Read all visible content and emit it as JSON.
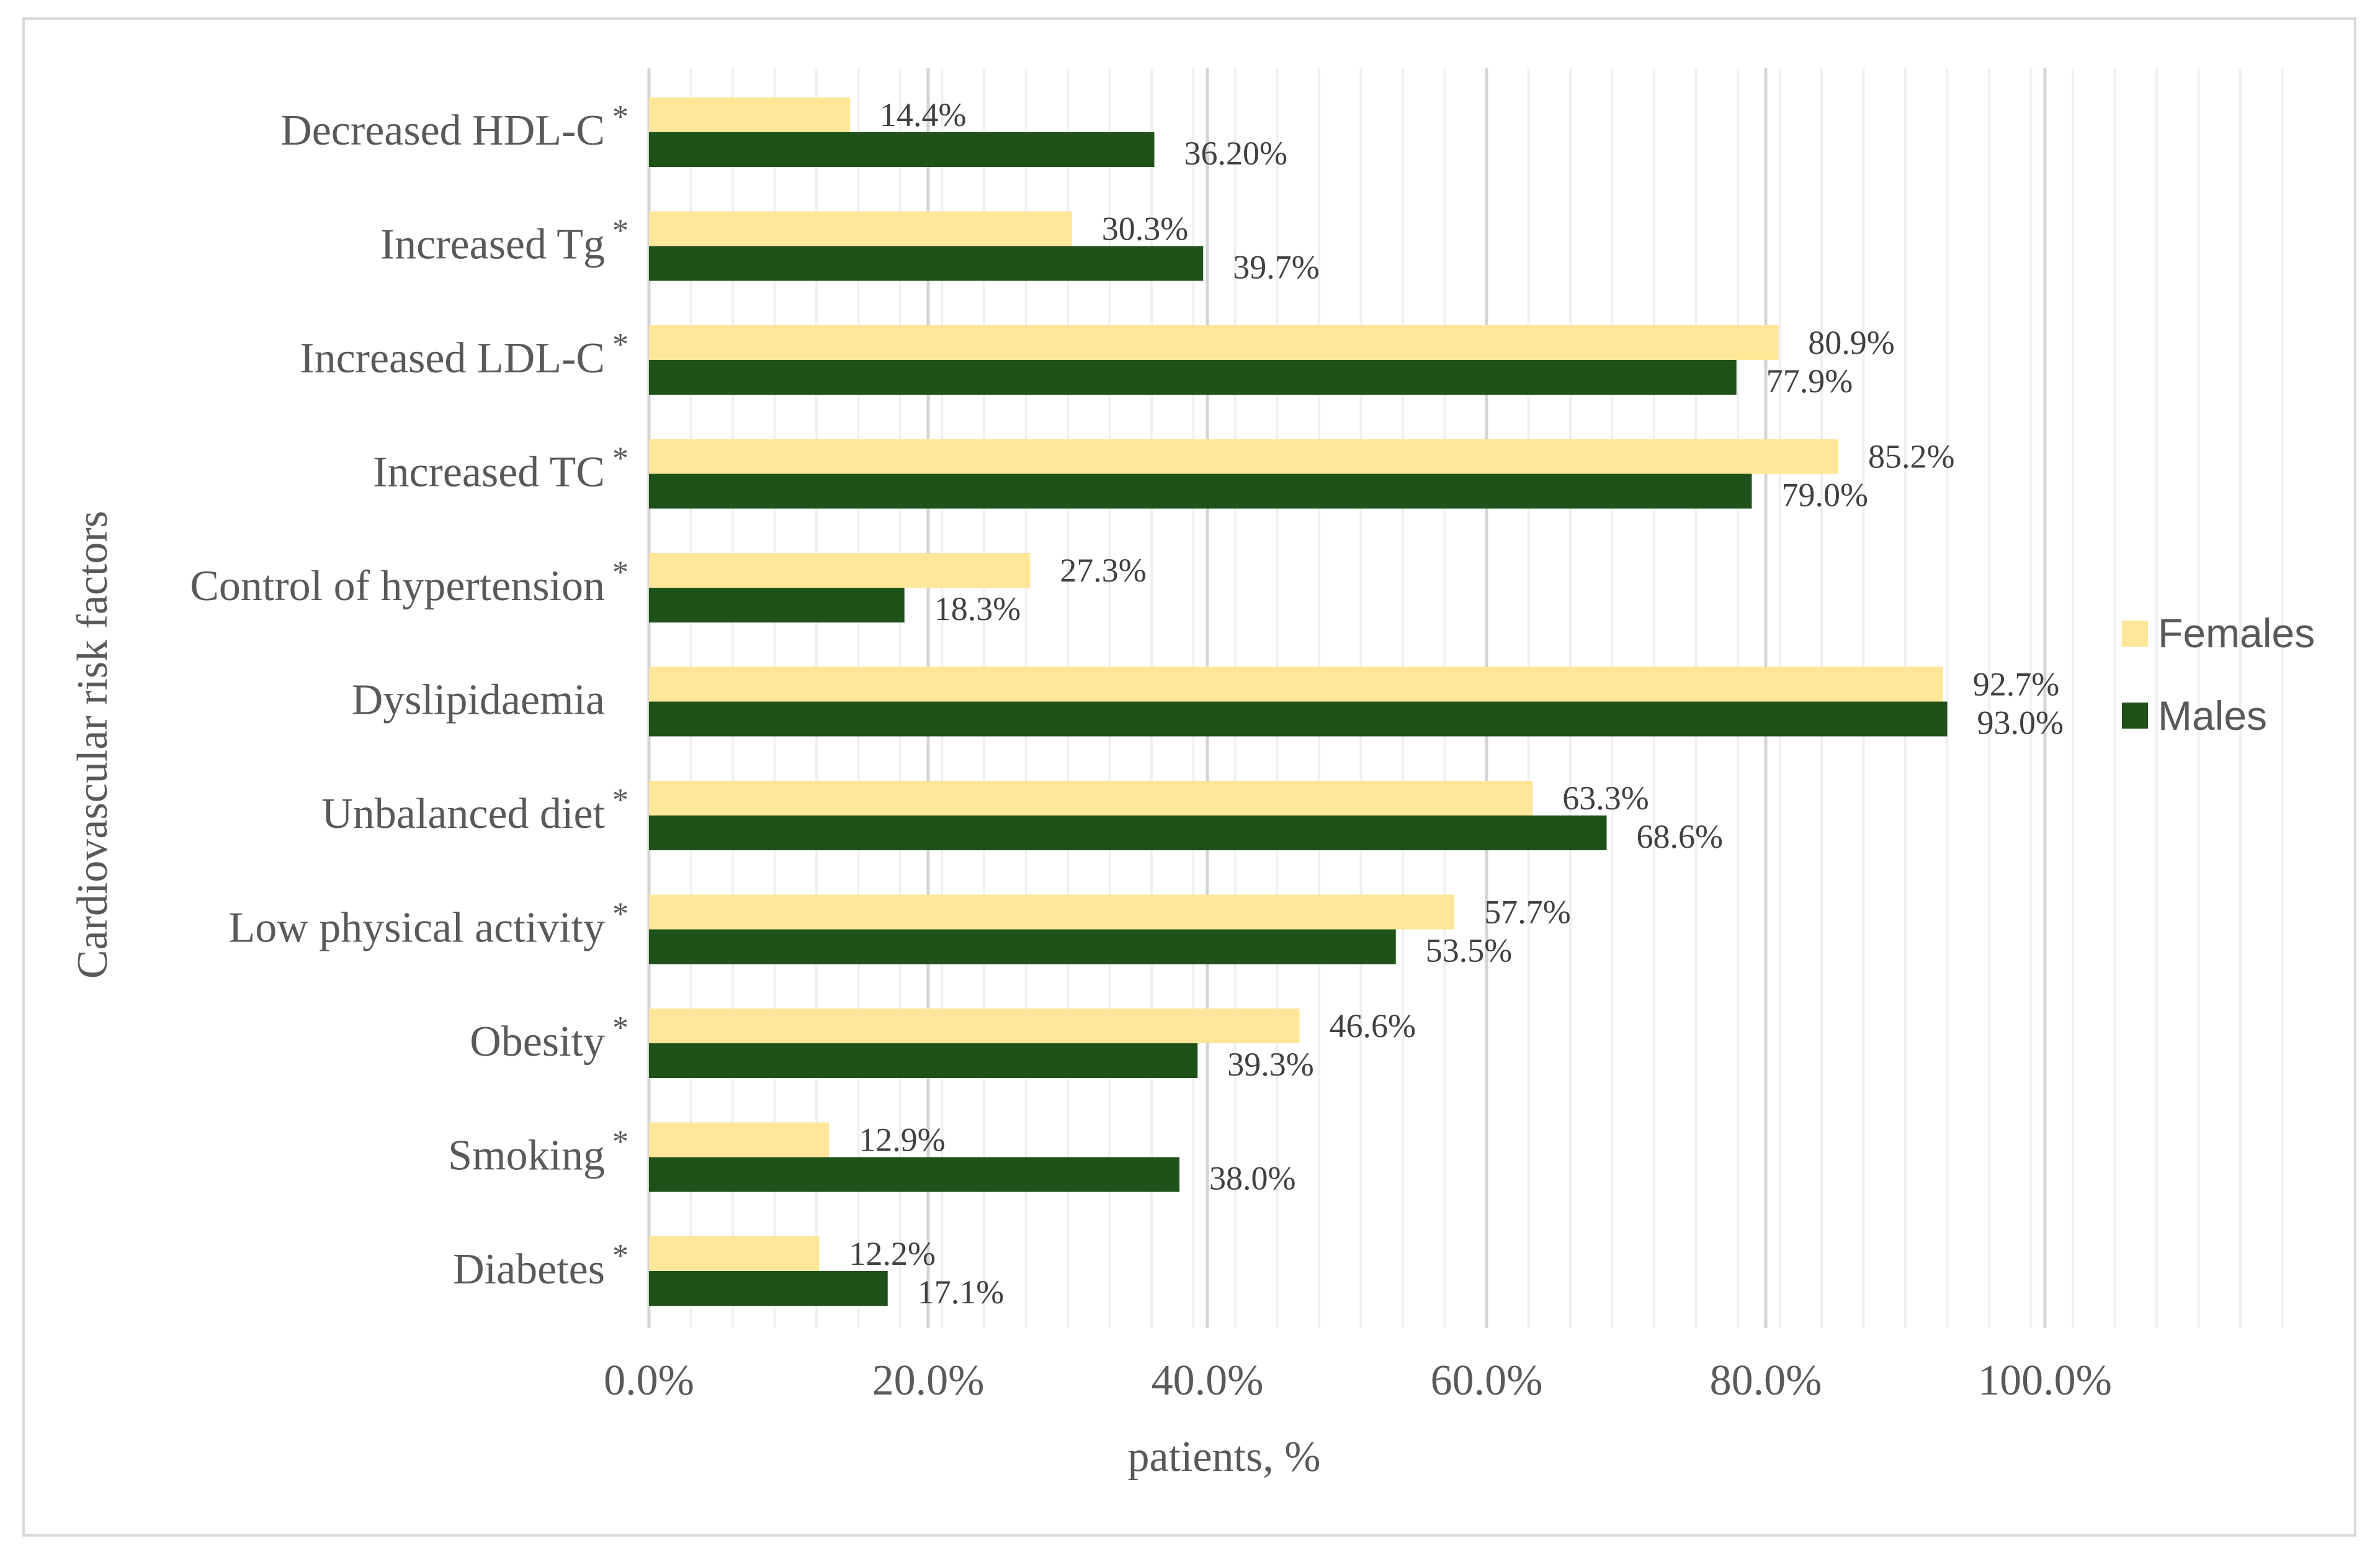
{
  "chart_data": {
    "type": "bar",
    "orientation": "horizontal",
    "xlabel": "patients, %",
    "ylabel": "Cardiovascular risk factors",
    "xlim": [
      0,
      120
    ],
    "x_ticks": [
      0,
      20,
      40,
      60,
      80,
      100
    ],
    "x_tick_labels": [
      "0.0%",
      "20.0%",
      "40.0%",
      "60.0%",
      "80.0%",
      "100.0%"
    ],
    "legend_position": "right",
    "colors": {
      "Females": "#ffe699",
      "Males": "#1e5218"
    },
    "categories": [
      "Decreased HDL-C",
      "Increased Tg",
      "Increased LDL-C",
      "Increased TC",
      "Control of hypertension",
      "Dyslipidaemia",
      "Unbalanced diet",
      "Low physical activity",
      "Obesity",
      "Smoking",
      "Diabetes"
    ],
    "significance_marks": [
      "*",
      "*",
      "*",
      "*",
      "*",
      "",
      "*",
      "*",
      "*",
      "*",
      "*"
    ],
    "series": [
      {
        "name": "Females",
        "values": [
          14.4,
          30.3,
          80.9,
          85.2,
          27.3,
          92.7,
          63.3,
          57.7,
          46.6,
          12.9,
          12.2
        ],
        "labels": [
          "14.4%",
          "30.3%",
          "80.9%",
          "85.2%",
          "27.3%",
          "92.7%",
          "63.3%",
          "57.7%",
          "46.6%",
          "12.9%",
          "12.2%"
        ]
      },
      {
        "name": "Males",
        "values": [
          36.2,
          39.7,
          77.9,
          79.0,
          18.3,
          93.0,
          68.6,
          53.5,
          39.3,
          38.0,
          17.1
        ],
        "labels": [
          "36.20%",
          "39.7%",
          "77.9%",
          "79.0%",
          "18.3%",
          "93.0%",
          "68.6%",
          "53.5%",
          "39.3%",
          "38.0%",
          "17.1%"
        ]
      }
    ]
  }
}
